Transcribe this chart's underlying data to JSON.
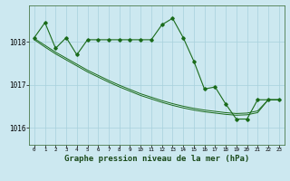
{
  "title": "Graphe pression niveau de la mer (hPa)",
  "background_color": "#cce8f0",
  "grid_color": "#a8d0dc",
  "line_color": "#1a6b1a",
  "spine_color": "#4a7a4a",
  "xlim": [
    -0.5,
    23.5
  ],
  "ylim": [
    1015.6,
    1018.85
  ],
  "yticks": [
    1016,
    1017,
    1018
  ],
  "xticks": [
    0,
    1,
    2,
    3,
    4,
    5,
    6,
    7,
    8,
    9,
    10,
    11,
    12,
    13,
    14,
    15,
    16,
    17,
    18,
    19,
    20,
    21,
    22,
    23
  ],
  "series": [
    {
      "x": [
        0,
        1,
        2,
        3,
        4,
        5,
        6,
        7,
        8,
        9,
        10,
        11,
        12,
        13,
        14,
        15,
        16,
        17,
        18,
        19,
        20,
        21,
        22,
        23
      ],
      "y": [
        1018.1,
        1018.45,
        1017.85,
        1018.1,
        1017.7,
        1018.05,
        1018.05,
        1018.05,
        1018.05,
        1018.05,
        1018.05,
        1018.05,
        1018.4,
        1018.55,
        1018.1,
        1017.55,
        1016.9,
        1016.95,
        1016.55,
        1016.2,
        1016.2,
        1016.65,
        1016.65,
        1016.65
      ],
      "marker": true
    },
    {
      "x": [
        0,
        1,
        2,
        3,
        4,
        5,
        6,
        7,
        8,
        9,
        10,
        11,
        12,
        13,
        14,
        15,
        16,
        17,
        18,
        19,
        20,
        21,
        22,
        23
      ],
      "y": [
        1018.05,
        1017.88,
        1017.72,
        1017.58,
        1017.44,
        1017.3,
        1017.18,
        1017.06,
        1016.95,
        1016.85,
        1016.75,
        1016.67,
        1016.59,
        1016.52,
        1016.46,
        1016.41,
        1016.37,
        1016.34,
        1016.31,
        1016.29,
        1016.3,
        1016.35,
        1016.65,
        1016.65
      ],
      "marker": false
    },
    {
      "x": [
        0,
        1,
        2,
        3,
        4,
        5,
        6,
        7,
        8,
        9,
        10,
        11,
        12,
        13,
        14,
        15,
        16,
        17,
        18,
        19,
        20,
        21,
        22,
        23
      ],
      "y": [
        1018.08,
        1017.92,
        1017.76,
        1017.62,
        1017.48,
        1017.34,
        1017.22,
        1017.1,
        1016.99,
        1016.89,
        1016.79,
        1016.71,
        1016.63,
        1016.56,
        1016.5,
        1016.45,
        1016.41,
        1016.38,
        1016.35,
        1016.33,
        1016.34,
        1016.39,
        1016.65,
        1016.65
      ],
      "marker": false
    }
  ],
  "ylabel_fontsize": 6,
  "xlabel_fontsize": 5.5,
  "title_fontsize": 6.5
}
